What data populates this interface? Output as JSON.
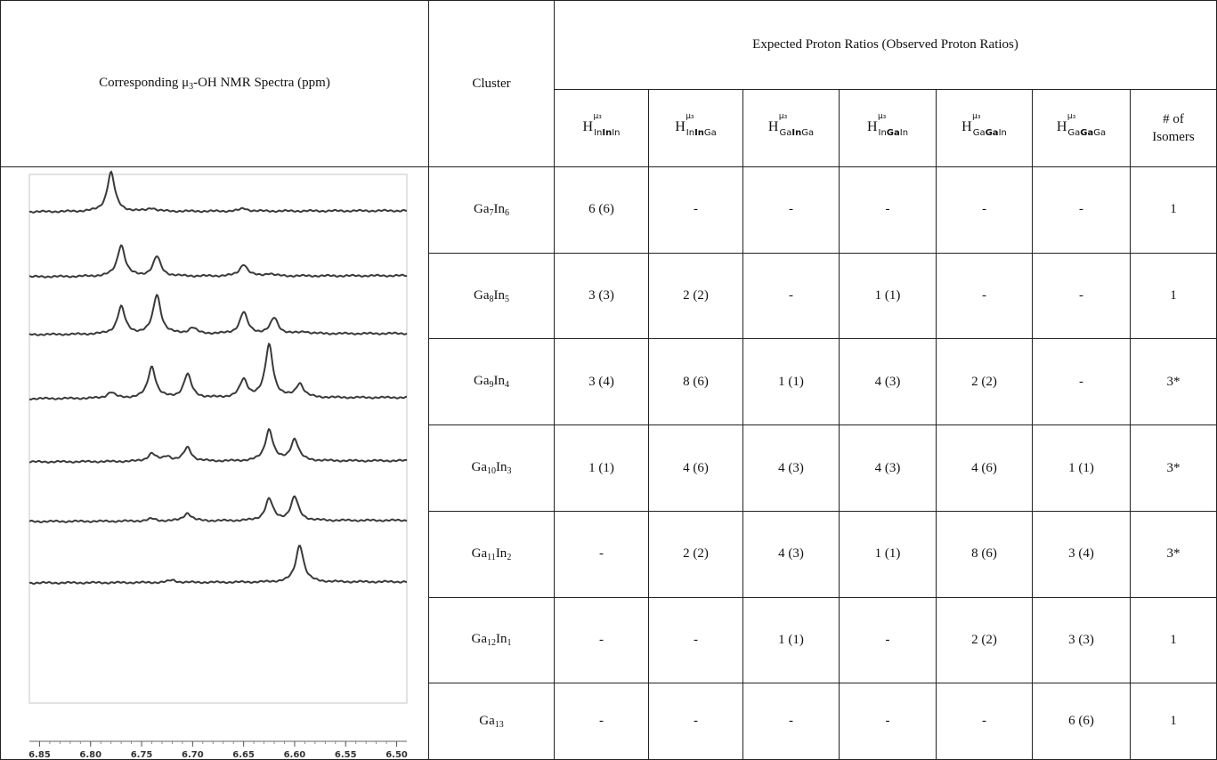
{
  "header": {
    "spectra_label": "Corresponding μ₃-OH  NMR Spectra (ppm)",
    "spectra_label_pre": "Corresponding μ",
    "spectra_label_sub": "3",
    "spectra_label_post": "-OH  NMR Spectra (ppm)",
    "cluster_label": "Cluster",
    "ratios_label": "Expected Proton Ratios (Observed Proton Ratios)",
    "isomers_label_line1": "# of",
    "isomers_label_line2": "Isomers",
    "columns": [
      {
        "sup": "μ₃",
        "sub_a": "In",
        "sub_b": "In",
        "sub_c": "In"
      },
      {
        "sup": "μ₃",
        "sub_a": "In",
        "sub_b": "In",
        "sub_c": "Ga"
      },
      {
        "sup": "μ₃",
        "sub_a": "Ga",
        "sub_b": "In",
        "sub_c": "Ga"
      },
      {
        "sup": "μ₃",
        "sub_a": "In",
        "sub_b": "Ga",
        "sub_c": "In"
      },
      {
        "sup": "μ₃",
        "sub_a": "Ga",
        "sub_b": "Ga",
        "sub_c": "In"
      },
      {
        "sup": "μ₃",
        "sub_a": "Ga",
        "sub_b": "Ga",
        "sub_c": "Ga"
      }
    ]
  },
  "rows": [
    {
      "ga": "Ga",
      "ga_n": "7",
      "in": "In",
      "in_n": "6",
      "cells": [
        "6 (6)",
        "-",
        "-",
        "-",
        "-",
        "-"
      ],
      "isomers": "1"
    },
    {
      "ga": "Ga",
      "ga_n": "8",
      "in": "In",
      "in_n": "5",
      "cells": [
        "3 (3)",
        "2 (2)",
        "-",
        "1 (1)",
        "-",
        "-"
      ],
      "isomers": "1"
    },
    {
      "ga": "Ga",
      "ga_n": "9",
      "in": "In",
      "in_n": "4",
      "cells": [
        "3 (4)",
        "8 (6)",
        "1 (1)",
        "4 (3)",
        "2 (2)",
        "-"
      ],
      "isomers": "3*"
    },
    {
      "ga": "Ga",
      "ga_n": "10",
      "in": "In",
      "in_n": "3",
      "cells": [
        "1 (1)",
        "4 (6)",
        "4 (3)",
        "4 (3)",
        "4 (6)",
        "1 (1)"
      ],
      "isomers": "3*"
    },
    {
      "ga": "Ga",
      "ga_n": "11",
      "in": "In",
      "in_n": "2",
      "cells": [
        "-",
        "2 (2)",
        "4 (3)",
        "1 (1)",
        "8 (6)",
        "3 (4)"
      ],
      "isomers": "3*"
    },
    {
      "ga": "Ga",
      "ga_n": "12",
      "in": "In",
      "in_n": "1",
      "cells": [
        "-",
        "-",
        "1 (1)",
        "-",
        "2 (2)",
        "3 (3)"
      ],
      "isomers": "1"
    },
    {
      "ga": "Ga",
      "ga_n": "13",
      "in": "",
      "in_n": "",
      "cells": [
        "-",
        "-",
        "-",
        "-",
        "-",
        "6 (6)"
      ],
      "isomers": "1"
    }
  ],
  "chart_data": {
    "type": "line",
    "title": "",
    "xlabel": "ppm",
    "ylabel": "",
    "x_ticks": [
      "6.85",
      "6.80",
      "6.75",
      "6.70",
      "6.65",
      "6.60",
      "6.55",
      "6.50"
    ],
    "xlim": [
      6.86,
      6.49
    ],
    "grid": false,
    "series": [
      {
        "peaks": [
          {
            "x": 6.78,
            "h": 1.0
          },
          {
            "x": 6.74,
            "h": 0.08
          },
          {
            "x": 6.65,
            "h": 0.07
          }
        ]
      },
      {
        "peaks": [
          {
            "x": 6.77,
            "h": 0.8
          },
          {
            "x": 6.735,
            "h": 0.5
          },
          {
            "x": 6.65,
            "h": 0.3
          },
          {
            "x": 6.625,
            "h": 0.06
          }
        ]
      },
      {
        "peaks": [
          {
            "x": 6.77,
            "h": 0.7
          },
          {
            "x": 6.735,
            "h": 1.0
          },
          {
            "x": 6.7,
            "h": 0.15
          },
          {
            "x": 6.65,
            "h": 0.55
          },
          {
            "x": 6.62,
            "h": 0.4
          },
          {
            "x": 6.59,
            "h": 0.05
          }
        ]
      },
      {
        "peaks": [
          {
            "x": 6.78,
            "h": 0.15
          },
          {
            "x": 6.74,
            "h": 0.8
          },
          {
            "x": 6.705,
            "h": 0.6
          },
          {
            "x": 6.65,
            "h": 0.45
          },
          {
            "x": 6.625,
            "h": 1.35
          },
          {
            "x": 6.595,
            "h": 0.35
          }
        ]
      },
      {
        "peaks": [
          {
            "x": 6.74,
            "h": 0.2
          },
          {
            "x": 6.725,
            "h": 0.12
          },
          {
            "x": 6.705,
            "h": 0.35
          },
          {
            "x": 6.625,
            "h": 0.8
          },
          {
            "x": 6.6,
            "h": 0.55
          }
        ]
      },
      {
        "peaks": [
          {
            "x": 6.74,
            "h": 0.06
          },
          {
            "x": 6.705,
            "h": 0.2
          },
          {
            "x": 6.625,
            "h": 0.55
          },
          {
            "x": 6.6,
            "h": 0.6
          }
        ]
      },
      {
        "peaks": [
          {
            "x": 6.72,
            "h": 0.06
          },
          {
            "x": 6.595,
            "h": 0.95
          }
        ]
      }
    ]
  }
}
